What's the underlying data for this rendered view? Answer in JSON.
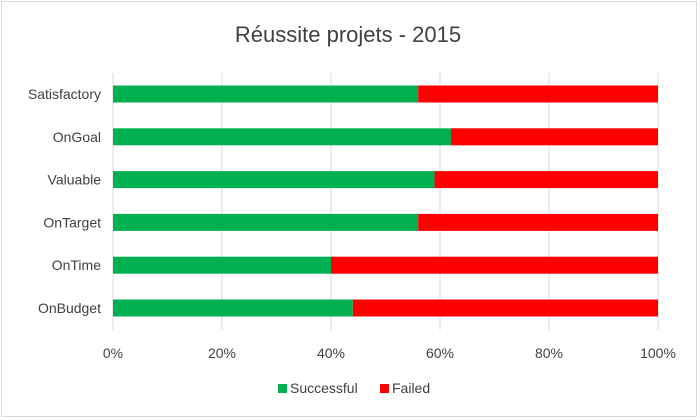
{
  "chart_data": {
    "type": "bar",
    "orientation": "horizontal",
    "stacked": "percent",
    "title": "Réussite projets - 2015",
    "categories": [
      "Satisfactory",
      "OnGoal",
      "Valuable",
      "OnTarget",
      "OnTime",
      "OnBudget"
    ],
    "series": [
      {
        "name": "Successful",
        "color": "#00b050",
        "values": [
          56,
          62,
          59,
          56,
          40,
          44
        ]
      },
      {
        "name": "Failed",
        "color": "#ff0000",
        "values": [
          44,
          38,
          41,
          44,
          60,
          56
        ]
      }
    ],
    "xlim": [
      0,
      100
    ],
    "xticks": [
      "0%",
      "20%",
      "40%",
      "60%",
      "80%",
      "100%"
    ],
    "grid": true,
    "legend": "bottom"
  }
}
